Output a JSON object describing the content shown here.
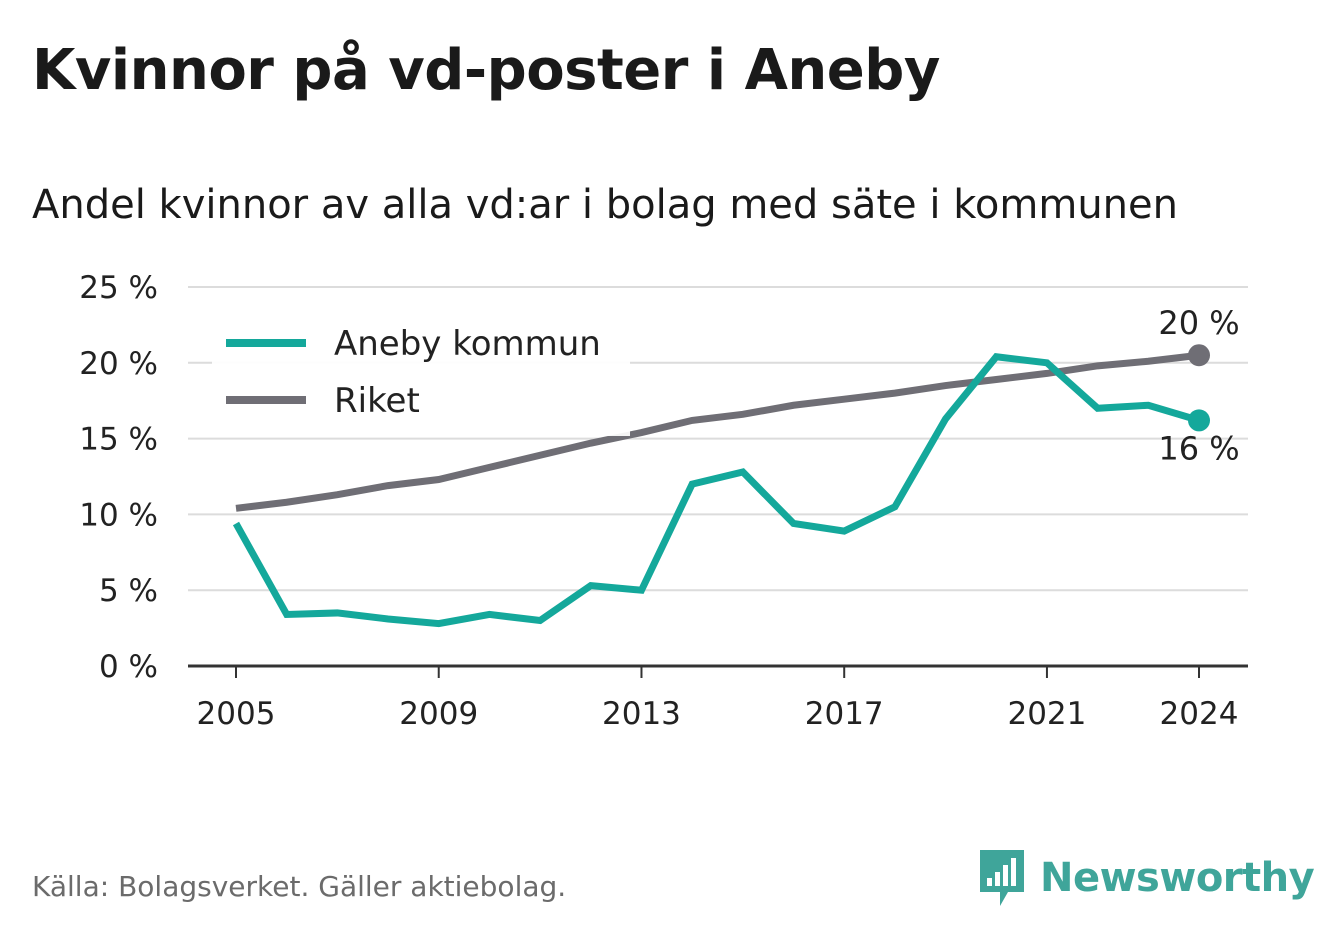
{
  "title": "Kvinnor på vd-poster i Aneby",
  "subtitle": "Andel kvinnor av alla vd:ar i bolag med säte i kommunen",
  "source": "Källa: Bolagsverket. Gäller aktiebolag.",
  "brand": {
    "name": "Newsworthy",
    "color": "#3fa59a"
  },
  "chart_data": {
    "type": "line",
    "x": [
      2005,
      2006,
      2007,
      2008,
      2009,
      2010,
      2011,
      2012,
      2013,
      2014,
      2015,
      2016,
      2017,
      2018,
      2019,
      2020,
      2021,
      2022,
      2023,
      2024
    ],
    "x_ticks": [
      2005,
      2009,
      2013,
      2017,
      2021,
      2024
    ],
    "y_ticks": [
      0,
      5,
      10,
      15,
      20,
      25
    ],
    "y_tick_labels": [
      "0 %",
      "5 %",
      "10 %",
      "15 %",
      "20 %",
      "25 %"
    ],
    "ylim": [
      0,
      25
    ],
    "xlabel": "",
    "ylabel": "",
    "grid": true,
    "legend_position": "top-left",
    "series": [
      {
        "name": "Aneby kommun",
        "color": "#14a89b",
        "values": [
          9.4,
          3.4,
          3.5,
          3.1,
          2.8,
          3.4,
          3.0,
          5.3,
          5.0,
          12.0,
          12.8,
          9.4,
          8.9,
          10.5,
          16.3,
          20.4,
          20.0,
          17.0,
          17.2,
          16.2
        ],
        "end_label": "16 %"
      },
      {
        "name": "Riket",
        "color": "#6f6e75",
        "values": [
          10.4,
          10.8,
          11.3,
          11.9,
          12.3,
          13.1,
          13.9,
          14.7,
          15.4,
          16.2,
          16.6,
          17.2,
          17.6,
          18.0,
          18.5,
          18.9,
          19.3,
          19.8,
          20.1,
          20.5
        ],
        "end_label": "20 %"
      }
    ]
  }
}
